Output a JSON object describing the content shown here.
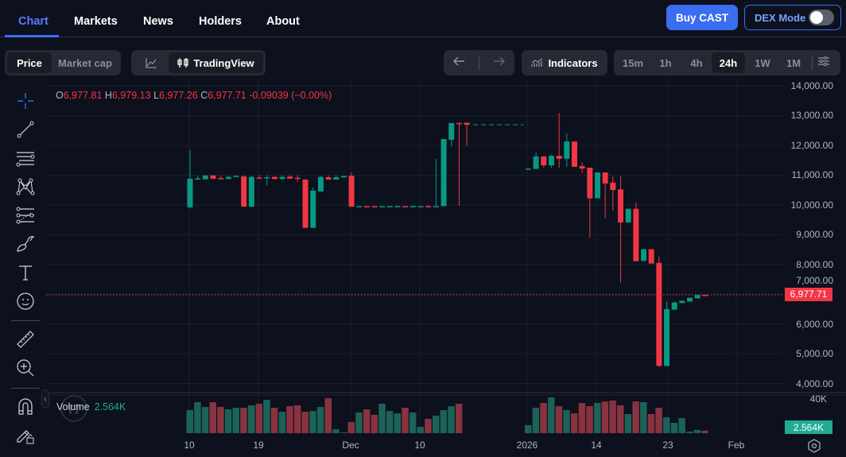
{
  "nav": {
    "tabs": [
      {
        "label": "Chart",
        "active": true
      },
      {
        "label": "Markets"
      },
      {
        "label": "News"
      },
      {
        "label": "Holders"
      },
      {
        "label": "About"
      }
    ],
    "buy_label": "Buy CAST",
    "dex_mode_label": "DEX Mode",
    "dex_mode_on": false,
    "accent": "#3a6df0"
  },
  "toolbar": {
    "price_label": "Price",
    "market_cap_label": "Market cap",
    "selected_series": "Price",
    "line_chart_icon": "line-chart-icon",
    "tradingview_label": "TradingView",
    "undo_icon": "arrow-left-icon",
    "redo_icon": "arrow-right-icon",
    "indicators_label": "Indicators",
    "timeframes": [
      "15m",
      "1h",
      "4h",
      "24h",
      "1W",
      "1M"
    ],
    "selected_timeframe": "24h",
    "settings_icon": "sliders-icon"
  },
  "drawing_tools": [
    "crosshair-icon",
    "trend-line-icon",
    "horizontal-lines-icon",
    "pattern-icon",
    "fib-icon",
    "brush-icon",
    "text-icon",
    "emoji-icon",
    "ruler-icon",
    "zoom-in-icon",
    "magnet-icon",
    "lock-drawings-icon"
  ],
  "legend": {
    "o_label": "O",
    "o": "6,977.81",
    "h_label": "H",
    "h": "6,979.13",
    "l_label": "L",
    "l": "6,977.26",
    "c_label": "C",
    "c": "6,977.71",
    "change": "-0.09039 (−0.00%)"
  },
  "volume_legend": {
    "label": "Volume",
    "value": "2.564K"
  },
  "last_price_label": "6,977.71",
  "last_volume_label": "2.564K",
  "chart_data": {
    "type": "candlestick",
    "colors": {
      "up": "#089981",
      "down": "#f23645",
      "volume_up": "#1b6258",
      "volume_down": "#893240"
    },
    "ylim": [
      4000,
      14000
    ],
    "y_ticks": [
      "14,000.00",
      "13,000.00",
      "12,000.00",
      "11,000.00",
      "10,000.00",
      "9,000.00",
      "8,000.00",
      "7,000.00",
      "6,000.00",
      "5,000.00",
      "4,000.00"
    ],
    "y_tick_values": [
      14000,
      13000,
      12000,
      11000,
      10000,
      9000,
      8000,
      7000,
      6000,
      5000,
      4000
    ],
    "volume_ticks": [
      "40K"
    ],
    "volume_unit": "K",
    "x_ticks": [
      "10",
      "19",
      "Dec",
      "10",
      "2026",
      "14",
      "23",
      "Feb"
    ],
    "last_price": 6977.71,
    "grid": true,
    "fields": [
      "date",
      "open",
      "high",
      "low",
      "close",
      "volume"
    ],
    "candles": [
      [
        "2025-11-10",
        9920,
        11840,
        9870,
        10880,
        23.7
      ],
      [
        "2025-11-11",
        10880,
        10990,
        10870,
        10890,
        31.8
      ],
      [
        "2025-11-12",
        10860,
        10990,
        10860,
        10990,
        26.9
      ],
      [
        "2025-11-13",
        10990,
        10990,
        10860,
        10880,
        31.8
      ],
      [
        "2025-11-14",
        10900,
        10990,
        10860,
        10890,
        26.9
      ],
      [
        "2025-11-15",
        10870,
        10990,
        10870,
        10940,
        24.5
      ],
      [
        "2025-11-16",
        10930,
        11000,
        10930,
        10970,
        26.1
      ],
      [
        "2025-11-17",
        10960,
        10990,
        9940,
        9940,
        26.1
      ],
      [
        "2025-11-18",
        9940,
        10980,
        9930,
        10940,
        28.6
      ],
      [
        "2025-11-19",
        10920,
        11000,
        10880,
        10910,
        30.2
      ],
      [
        "2025-11-20",
        10920,
        11000,
        10650,
        10930,
        34.3
      ],
      [
        "2025-11-21",
        10940,
        10960,
        10850,
        10870,
        26.1
      ],
      [
        "2025-11-22",
        10870,
        11000,
        10850,
        10940,
        22.0
      ],
      [
        "2025-11-23",
        10950,
        11000,
        10880,
        10880,
        27.7
      ],
      [
        "2025-11-24",
        10910,
        11000,
        10780,
        10900,
        28.6
      ],
      [
        "2025-11-25",
        10850,
        10880,
        9230,
        9230,
        22.0
      ],
      [
        "2025-11-26",
        9230,
        10580,
        9230,
        10480,
        22.8
      ],
      [
        "2025-11-27",
        10450,
        10980,
        10450,
        10940,
        26.9
      ],
      [
        "2025-11-28",
        10930,
        10990,
        10850,
        10850,
        35.9
      ],
      [
        "2025-11-29",
        10850,
        10990,
        10850,
        10930,
        4.1
      ],
      [
        "2025-11-30",
        10920,
        10980,
        10920,
        10970,
        0.8
      ],
      [
        "2025-12-01",
        10980,
        11090,
        9940,
        9940,
        11.4
      ],
      [
        "2025-12-02",
        9950,
        9960,
        9950,
        9960,
        21.2
      ],
      [
        "2025-12-03",
        9960,
        9960,
        9950,
        9950,
        24.5
      ],
      [
        "2025-12-04",
        9960,
        9960,
        9950,
        9950,
        18.8
      ],
      [
        "2025-12-05",
        9950,
        9960,
        9950,
        9960,
        30.2
      ],
      [
        "2025-12-06",
        9950,
        9960,
        9950,
        9960,
        22.8
      ],
      [
        "2025-12-07",
        9950,
        9990,
        9950,
        9960,
        20.4
      ],
      [
        "2025-12-08",
        9960,
        9960,
        9950,
        9950,
        26.1
      ],
      [
        "2025-12-09",
        9950,
        9990,
        9950,
        9960,
        21.2
      ],
      [
        "2025-12-10",
        9950,
        9960,
        9950,
        9960,
        6.5
      ],
      [
        "2025-12-11",
        9960,
        9990,
        9950,
        9950,
        14.7
      ],
      [
        "2025-12-12",
        9950,
        11540,
        9950,
        9960,
        18.0
      ],
      [
        "2025-12-13",
        9960,
        12210,
        9950,
        12210,
        23.7
      ],
      [
        "2025-12-14",
        12190,
        12750,
        11970,
        12750,
        27.7
      ],
      [
        "2025-12-15",
        12750,
        12770,
        9970,
        12720,
        30.2
      ],
      [
        "2025-12-16",
        12760,
        12760,
        11970,
        12690,
        0
      ],
      [
        "2026-01-05",
        11200,
        11220,
        11190,
        11220,
        8.2
      ],
      [
        "2026-01-06",
        11210,
        11760,
        11200,
        11630,
        26.1
      ],
      [
        "2026-01-07",
        11630,
        11630,
        11250,
        11330,
        31.0
      ],
      [
        "2026-01-08",
        11330,
        11680,
        11250,
        11650,
        36.7
      ],
      [
        "2026-01-09",
        11650,
        13090,
        11250,
        11550,
        27.7
      ],
      [
        "2026-01-10",
        11550,
        12400,
        11280,
        12130,
        23.7
      ],
      [
        "2026-01-11",
        12130,
        12130,
        11280,
        11280,
        20.4
      ],
      [
        "2026-01-12",
        11300,
        11420,
        11080,
        11220,
        31.0
      ],
      [
        "2026-01-13",
        11250,
        11250,
        8890,
        10220,
        27.7
      ],
      [
        "2026-01-14",
        10220,
        11090,
        10220,
        11090,
        31.0
      ],
      [
        "2026-01-15",
        11090,
        11090,
        9550,
        10720,
        32.6
      ],
      [
        "2026-01-16",
        10750,
        10960,
        9800,
        10500,
        33.5
      ],
      [
        "2026-01-17",
        10520,
        10960,
        7390,
        9410,
        28.6
      ],
      [
        "2026-01-18",
        9410,
        9870,
        9410,
        9870,
        19.6
      ],
      [
        "2026-01-19",
        9870,
        10080,
        8110,
        8110,
        32.6
      ],
      [
        "2026-01-20",
        8120,
        8530,
        8090,
        8510,
        31.8
      ],
      [
        "2026-01-21",
        8510,
        8510,
        8030,
        8030,
        19.6
      ],
      [
        "2026-01-22",
        8050,
        8270,
        4560,
        4590,
        26.1
      ],
      [
        "2026-01-23",
        4590,
        6750,
        4590,
        6500,
        16.3
      ],
      [
        "2026-01-24",
        6480,
        6750,
        6480,
        6720,
        10.6
      ],
      [
        "2026-01-25",
        6700,
        6780,
        6700,
        6780,
        15.5
      ],
      [
        "2026-01-26",
        6750,
        6880,
        6750,
        6880,
        1.6
      ],
      [
        "2026-01-27",
        6860,
        6980,
        6860,
        6970,
        3.3
      ],
      [
        "2026-01-28",
        6977.81,
        6979.13,
        6977.26,
        6977.71,
        2.564
      ]
    ]
  }
}
